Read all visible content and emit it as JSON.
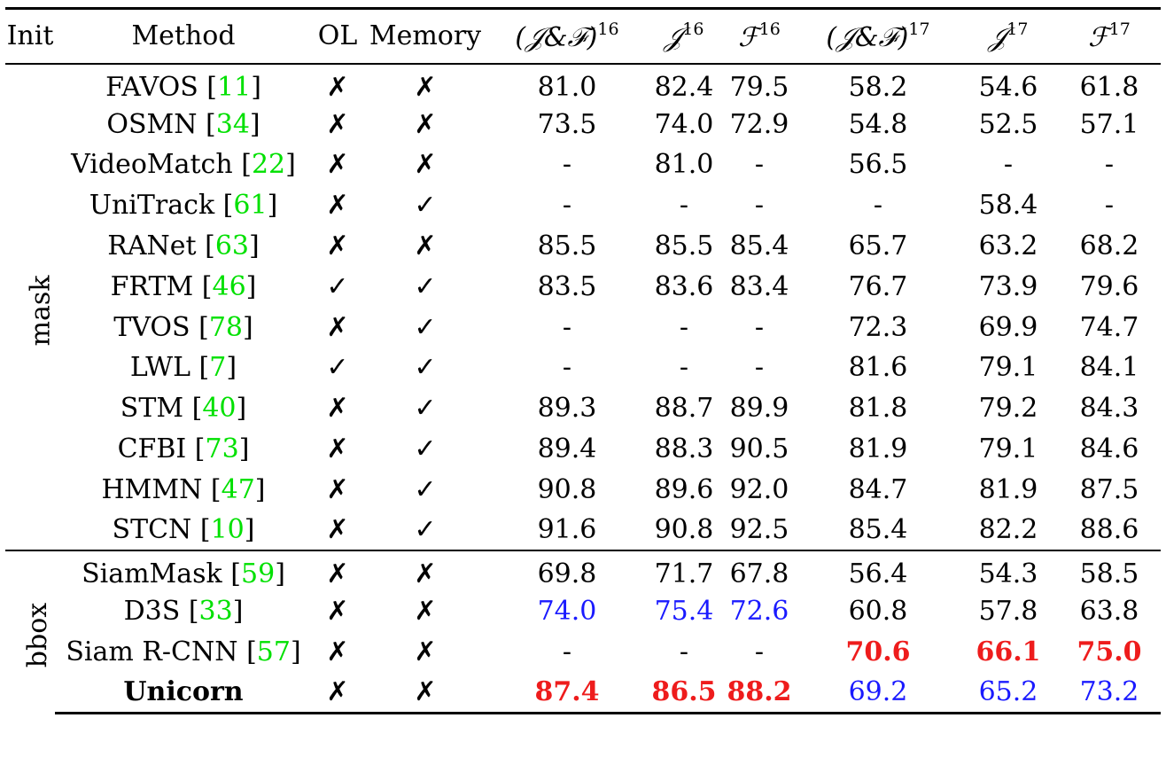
{
  "headers": {
    "init": "Init",
    "method": "Method",
    "ol": "OL",
    "memory": "Memory",
    "jf16": "(𝒥&ℱ)",
    "jf16_sup": "16",
    "j16": "𝒥",
    "j16_sup": "16",
    "f16": "ℱ",
    "f16_sup": "16",
    "jf17": "(𝒥&ℱ)",
    "jf17_sup": "17",
    "j17": "𝒥",
    "j17_sup": "17",
    "f17": "ℱ",
    "f17_sup": "17"
  },
  "symbols": {
    "check": "✓",
    "cross": "✗"
  },
  "colors": {
    "best": "#ee1c1c",
    "second": "#1a1aff",
    "ref": "#00e000"
  },
  "groups": [
    {
      "init": "mask",
      "rows": [
        {
          "method": "FAVOS",
          "ref": "11",
          "ol": "✗",
          "memory": "✗",
          "jf16": "81.0",
          "j16": "82.4",
          "f16": "79.5",
          "jf17": "58.2",
          "j17": "54.6",
          "f17": "61.8"
        },
        {
          "method": "OSMN",
          "ref": "34",
          "ol": "✗",
          "memory": "✗",
          "jf16": "73.5",
          "j16": "74.0",
          "f16": "72.9",
          "jf17": "54.8",
          "j17": "52.5",
          "f17": "57.1"
        },
        {
          "method": "VideoMatch",
          "ref": "22",
          "ol": "✗",
          "memory": "✗",
          "jf16": "-",
          "j16": "81.0",
          "f16": "-",
          "jf17": "56.5",
          "j17": "-",
          "f17": "-"
        },
        {
          "method": "UniTrack",
          "ref": "61",
          "ol": "✗",
          "memory": "✓",
          "jf16": "-",
          "j16": "-",
          "f16": "-",
          "jf17": "-",
          "j17": "58.4",
          "f17": "-"
        },
        {
          "method": "RANet",
          "ref": "63",
          "ol": "✗",
          "memory": "✗",
          "jf16": "85.5",
          "j16": "85.5",
          "f16": "85.4",
          "jf17": "65.7",
          "j17": "63.2",
          "f17": "68.2"
        },
        {
          "method": "FRTM",
          "ref": "46",
          "ol": "✓",
          "memory": "✓",
          "jf16": "83.5",
          "j16": "83.6",
          "f16": "83.4",
          "jf17": "76.7",
          "j17": "73.9",
          "f17": "79.6"
        },
        {
          "method": "TVOS",
          "ref": "78",
          "ol": "✗",
          "memory": "✓",
          "jf16": "-",
          "j16": "-",
          "f16": "-",
          "jf17": "72.3",
          "j17": "69.9",
          "f17": "74.7"
        },
        {
          "method": "LWL",
          "ref": "7",
          "ol": "✓",
          "memory": "✓",
          "jf16": "-",
          "j16": "-",
          "f16": "-",
          "jf17": "81.6",
          "j17": "79.1",
          "f17": "84.1"
        },
        {
          "method": "STM",
          "ref": "40",
          "ol": "✗",
          "memory": "✓",
          "jf16": "89.3",
          "j16": "88.7",
          "f16": "89.9",
          "jf17": "81.8",
          "j17": "79.2",
          "f17": "84.3"
        },
        {
          "method": "CFBI",
          "ref": "73",
          "ol": "✗",
          "memory": "✓",
          "jf16": "89.4",
          "j16": "88.3",
          "f16": "90.5",
          "jf17": "81.9",
          "j17": "79.1",
          "f17": "84.6"
        },
        {
          "method": "HMMN",
          "ref": "47",
          "ol": "✗",
          "memory": "✓",
          "jf16": "90.8",
          "j16": "89.6",
          "f16": "92.0",
          "jf17": "84.7",
          "j17": "81.9",
          "f17": "87.5"
        },
        {
          "method": "STCN",
          "ref": "10",
          "ol": "✗",
          "memory": "✓",
          "jf16": "91.6",
          "j16": "90.8",
          "f16": "92.5",
          "jf17": "85.4",
          "j17": "82.2",
          "f17": "88.6"
        }
      ]
    },
    {
      "init": "bbox",
      "rows": [
        {
          "method": "SiamMask",
          "ref": "59",
          "ol": "✗",
          "memory": "✗",
          "jf16": "69.8",
          "j16": "71.7",
          "f16": "67.8",
          "jf17": "56.4",
          "j17": "54.3",
          "f17": "58.5"
        },
        {
          "method": "D3S",
          "ref": "33",
          "ol": "✗",
          "memory": "✗",
          "jf16": "74.0",
          "j16": "75.4",
          "f16": "72.6",
          "jf17": "60.8",
          "j17": "57.8",
          "f17": "63.8",
          "style": {
            "jf16": "second",
            "j16": "second",
            "f16": "second"
          }
        },
        {
          "method": "Siam R-CNN",
          "ref": "57",
          "ol": "✗",
          "memory": "✗",
          "jf16": "-",
          "j16": "-",
          "f16": "-",
          "jf17": "70.6",
          "j17": "66.1",
          "f17": "75.0",
          "style": {
            "jf17": "best",
            "j17": "best",
            "f17": "best"
          }
        },
        {
          "method": "Unicorn",
          "ref": "",
          "bold": true,
          "ol": "✗",
          "memory": "✗",
          "jf16": "87.4",
          "j16": "86.5",
          "f16": "88.2",
          "jf17": "69.2",
          "j17": "65.2",
          "f17": "73.2",
          "style": {
            "jf16": "best",
            "j16": "best",
            "f16": "best",
            "jf17": "second",
            "j17": "second",
            "f17": "second"
          }
        }
      ]
    }
  ]
}
